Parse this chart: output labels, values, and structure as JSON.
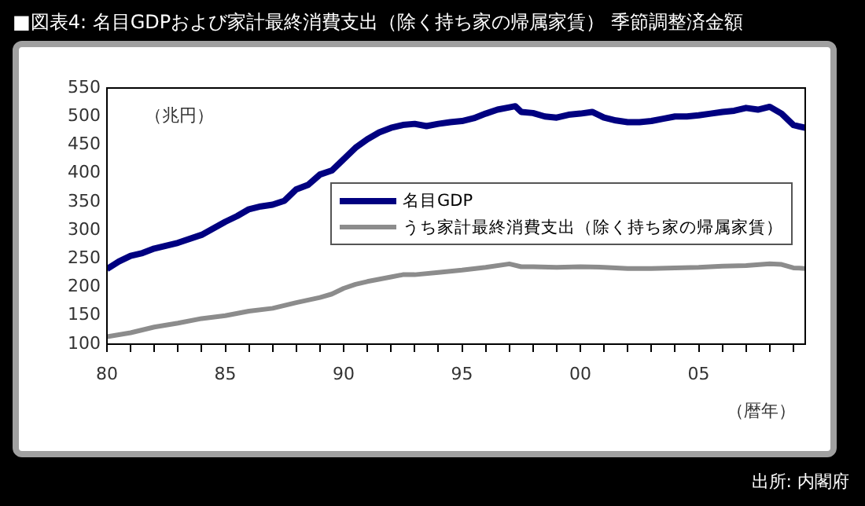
{
  "chart_data": {
    "type": "line",
    "title": "■図表4: 名目GDPおよび家計最終消費支出（除く持ち家の帰属家賃） 季節調整済金額",
    "ylabel": "（兆円）",
    "xlabel": "（暦年）",
    "annotations": [
      "出所: 内閣府"
    ],
    "xlim": [
      1980,
      2009.5
    ],
    "ylim": [
      100,
      550
    ],
    "yticks": [
      100,
      150,
      200,
      250,
      300,
      350,
      400,
      450,
      500,
      550
    ],
    "xticks": [
      {
        "value": 1980,
        "label": "80"
      },
      {
        "value": 1981,
        "label": null
      },
      {
        "value": 1982,
        "label": null
      },
      {
        "value": 1983,
        "label": null
      },
      {
        "value": 1984,
        "label": null
      },
      {
        "value": 1985,
        "label": "85"
      },
      {
        "value": 1986,
        "label": null
      },
      {
        "value": 1987,
        "label": null
      },
      {
        "value": 1988,
        "label": null
      },
      {
        "value": 1989,
        "label": null
      },
      {
        "value": 1990,
        "label": "90"
      },
      {
        "value": 1991,
        "label": null
      },
      {
        "value": 1992,
        "label": null
      },
      {
        "value": 1993,
        "label": null
      },
      {
        "value": 1994,
        "label": null
      },
      {
        "value": 1995,
        "label": "95"
      },
      {
        "value": 1996,
        "label": null
      },
      {
        "value": 1997,
        "label": null
      },
      {
        "value": 1998,
        "label": null
      },
      {
        "value": 1999,
        "label": null
      },
      {
        "value": 2000,
        "label": "00"
      },
      {
        "value": 2001,
        "label": null
      },
      {
        "value": 2002,
        "label": null
      },
      {
        "value": 2003,
        "label": null
      },
      {
        "value": 2004,
        "label": null
      },
      {
        "value": 2005,
        "label": "05"
      },
      {
        "value": 2006,
        "label": null
      },
      {
        "value": 2007,
        "label": null
      },
      {
        "value": 2008,
        "label": null
      },
      {
        "value": 2009,
        "label": null
      }
    ],
    "grid": false,
    "legend": "right",
    "marker": "none",
    "line_style": "solid",
    "series": [
      {
        "name": "名目GDP",
        "color": "#000080",
        "x": [
          1980,
          1980.5,
          1981,
          1981.5,
          1982,
          1983,
          1984,
          1985,
          1985.5,
          1986,
          1986.5,
          1987,
          1987.5,
          1988,
          1988.5,
          1989,
          1989.5,
          1990,
          1990.5,
          1991,
          1991.5,
          1992,
          1992.5,
          1993,
          1993.5,
          1994,
          1994.5,
          1995,
          1995.5,
          1996,
          1996.5,
          1997,
          1997.25,
          1997.5,
          1998,
          1998.5,
          1999,
          1999.5,
          2000,
          2000.5,
          2001,
          2001.5,
          2002,
          2002.5,
          2003,
          2003.5,
          2004,
          2004.5,
          2005,
          2005.5,
          2006,
          2006.5,
          2007,
          2007.5,
          2008,
          2008.5,
          2009,
          2009.5
        ],
        "values": [
          232,
          245,
          255,
          260,
          268,
          278,
          292,
          315,
          325,
          337,
          342,
          345,
          352,
          372,
          380,
          398,
          405,
          425,
          445,
          460,
          472,
          480,
          485,
          487,
          483,
          487,
          490,
          492,
          497,
          505,
          512,
          516,
          518,
          508,
          506,
          500,
          498,
          503,
          505,
          508,
          498,
          493,
          490,
          490,
          492,
          496,
          500,
          500,
          502,
          505,
          508,
          510,
          515,
          512,
          517,
          505,
          485,
          480
        ]
      },
      {
        "name": "うち家計最終消費支出（除く持ち家の帰属家賃）",
        "color": "#8c8c8c",
        "x": [
          1980,
          1981,
          1982,
          1983,
          1984,
          1985,
          1986,
          1987,
          1988,
          1989,
          1989.5,
          1990,
          1990.5,
          1991,
          1992,
          1992.5,
          1993,
          1994,
          1995,
          1996,
          1997,
          1997.5,
          1998,
          1999,
          2000,
          2001,
          2002,
          2003,
          2004,
          2005,
          2006,
          2007,
          2008,
          2008.5,
          2009,
          2009.5
        ],
        "values": [
          113,
          120,
          130,
          137,
          145,
          150,
          158,
          163,
          173,
          182,
          188,
          198,
          205,
          210,
          218,
          222,
          222,
          226,
          230,
          235,
          241,
          236,
          236,
          235,
          236,
          235,
          233,
          233,
          234,
          235,
          237,
          238,
          241,
          240,
          234,
          233
        ]
      }
    ]
  }
}
